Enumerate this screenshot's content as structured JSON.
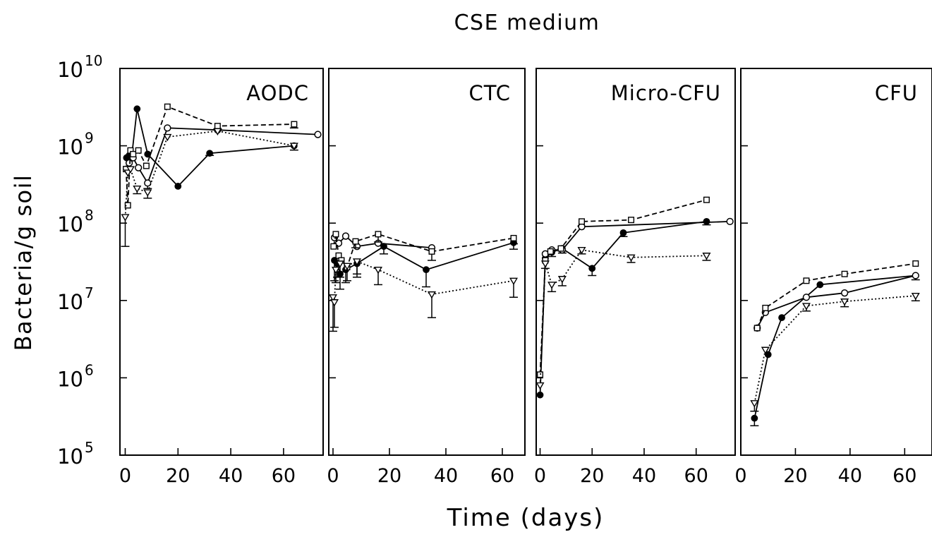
{
  "chart_data": {
    "type": "line",
    "title": "CSE medium",
    "xlabel": "Time (days)",
    "ylabel": "Bacteria/g soil",
    "yscale": "log",
    "ylim": [
      100000,
      10000000000
    ],
    "y_ticks": [
      {
        "base": "10",
        "exp": "5"
      },
      {
        "base": "10",
        "exp": "6"
      },
      {
        "base": "10",
        "exp": "7"
      },
      {
        "base": "10",
        "exp": "8"
      },
      {
        "base": "10",
        "exp": "9"
      },
      {
        "base": "10",
        "exp": "10"
      }
    ],
    "grid": false,
    "legend": "none",
    "panels": [
      {
        "title": "AODC",
        "xlim": [
          -2,
          75
        ],
        "x_ticks": [
          "0",
          "20",
          "40",
          "60"
        ],
        "x_tick_values": [
          0,
          20,
          40,
          60
        ],
        "series": [
          {
            "marker": "filled-circle",
            "dash": "solid",
            "x": [
              0.5,
              1.5,
              2.5,
              4.5,
              8.5,
              20,
              32,
              64
            ],
            "y": [
              700000000,
              750000000,
              750000000,
              3000000000,
              780000000,
              300000000,
              800000000,
              1000000000
            ],
            "err": [
              0,
              0,
              0,
              0,
              0,
              0,
              50000000,
              120000000
            ]
          },
          {
            "marker": "open-circle",
            "dash": "solid",
            "x": [
              0.5,
              1.5,
              3,
              5,
              8.5,
              16,
              35,
              73
            ],
            "y": [
              500000000,
              600000000,
              700000000,
              520000000,
              330000000,
              1700000000,
              1600000000,
              1400000000
            ],
            "err": [
              0,
              0,
              0,
              0,
              50000000,
              0,
              0,
              0
            ]
          },
          {
            "marker": "open-square",
            "dash": "dashed",
            "x": [
              0.3,
              1,
              2,
              3,
              5,
              8,
              16,
              35,
              64
            ],
            "y": [
              500000000,
              170000000,
              870000000,
              780000000,
              870000000,
              550000000,
              3200000000,
              1800000000,
              1900000000
            ],
            "err": [
              0,
              0,
              0,
              0,
              0,
              0,
              0,
              160000000,
              200000000
            ]
          },
          {
            "marker": "open-triangle-down",
            "dash": "dotted",
            "x": [
              0,
              1,
              2,
              4.5,
              8.5,
              16,
              35,
              64
            ],
            "y": [
              120000000,
              450000000,
              500000000,
              280000000,
              250000000,
              1300000000,
              1550000000,
              1000000000
            ],
            "err": [
              70000000,
              0,
              0,
              40000000,
              40000000,
              0,
              0,
              0
            ]
          }
        ]
      },
      {
        "title": "CTC",
        "xlim": [
          -1.5,
          68
        ],
        "x_ticks": [
          "0",
          "20",
          "40",
          "60"
        ],
        "x_tick_values": [
          0,
          20,
          40,
          60
        ],
        "series": [
          {
            "marker": "filled-circle",
            "dash": "solid",
            "x": [
              0.5,
              1.5,
              2.5,
              4.5,
              8.5,
              18,
              33,
              64
            ],
            "y": [
              33000000,
              30000000,
              22000000,
              25000000,
              30000000,
              50000000,
              25000000,
              56000000
            ],
            "err": [
              15000000,
              10000000,
              8000000,
              8000000,
              10000000,
              10000000,
              10000000,
              10000000
            ]
          },
          {
            "marker": "open-circle",
            "dash": "solid",
            "x": [
              0.5,
              2,
              4.5,
              8.5,
              16,
              35
            ],
            "y": [
              65000000,
              55000000,
              68000000,
              50000000,
              55000000,
              48000000
            ],
            "err": [
              0,
              0,
              0,
              0,
              0,
              0
            ]
          },
          {
            "marker": "open-square",
            "dash": "dashed",
            "x": [
              0.2,
              1,
              2,
              3,
              5,
              8,
              16,
              35,
              64
            ],
            "y": [
              50000000,
              72000000,
              38000000,
              33000000,
              27000000,
              58000000,
              72000000,
              43000000,
              64000000
            ],
            "err": [
              0,
              0,
              0,
              0,
              0,
              10000000,
              15000000,
              10000000,
              10000000
            ]
          },
          {
            "marker": "open-triangle-down",
            "dash": "dotted",
            "x": [
              0,
              0.5,
              1,
              2.5,
              5,
              8.5,
              16,
              35,
              64
            ],
            "y": [
              11000000,
              9500000,
              25000000,
              30000000,
              28000000,
              32000000,
              25000000,
              12000000,
              18000000
            ],
            "err": [
              7000000,
              5000000,
              8000000,
              10000000,
              10000000,
              10000000,
              9000000,
              6000000,
              7000000
            ]
          }
        ]
      },
      {
        "title": "Micro-CFU",
        "xlim": [
          -1.5,
          75
        ],
        "x_ticks": [
          "0",
          "20",
          "40",
          "60"
        ],
        "x_tick_values": [
          0,
          20,
          40,
          60
        ],
        "series": [
          {
            "marker": "filled-circle",
            "dash": "solid",
            "x": [
              0,
              2,
              4.5,
              8.5,
              20,
              32,
              64
            ],
            "y": [
              600000,
              35000000,
              42000000,
              47000000,
              26000000,
              75000000,
              105000000
            ],
            "err": [
              0,
              0,
              5000000,
              6000000,
              5000000,
              8000000,
              10000000
            ]
          },
          {
            "marker": "open-circle",
            "dash": "solid",
            "x": [
              2,
              4.5,
              8.5,
              16,
              73
            ],
            "y": [
              40000000,
              45000000,
              45000000,
              90000000,
              105000000
            ],
            "err": [
              0,
              0,
              0,
              0,
              0
            ]
          },
          {
            "marker": "open-square",
            "dash": "dashed",
            "x": [
              0,
              2,
              4,
              8,
              16,
              35,
              64
            ],
            "y": [
              1100000,
              33000000,
              43000000,
              47000000,
              105000000,
              110000000,
              200000000
            ],
            "err": [
              0,
              0,
              0,
              0,
              0,
              0,
              0
            ]
          },
          {
            "marker": "open-triangle-down",
            "dash": "dotted",
            "x": [
              0,
              2,
              4.5,
              8.5,
              16,
              35,
              64
            ],
            "y": [
              800000,
              30000000,
              16000000,
              19000000,
              45000000,
              36000000,
              38000000
            ],
            "err": [
              0,
              4000000,
              3000000,
              3500000,
              5000000,
              5000000,
              5000000
            ]
          }
        ]
      },
      {
        "title": "CFU",
        "xlim": [
          0,
          70
        ],
        "x_ticks": [
          "0",
          "20",
          "40",
          "60"
        ],
        "x_tick_values": [
          0,
          20,
          40,
          60
        ],
        "series": [
          {
            "marker": "filled-circle",
            "dash": "solid",
            "x": [
              5,
              10,
              15,
              29,
              64
            ],
            "y": [
              300000,
              2000000,
              6000000,
              16000000,
              21000000
            ],
            "err": [
              60000,
              0,
              0,
              0,
              2500000
            ]
          },
          {
            "marker": "open-circle",
            "dash": "solid",
            "x": [
              6,
              9,
              24,
              38,
              64
            ],
            "y": [
              4400000,
              7000000,
              11000000,
              12500000,
              21000000
            ],
            "err": [
              0,
              0,
              0,
              0,
              0
            ]
          },
          {
            "marker": "open-square",
            "dash": "dashed",
            "x": [
              6,
              9,
              24,
              38,
              64
            ],
            "y": [
              4400000,
              8000000,
              18000000,
              22000000,
              30000000
            ],
            "err": [
              0,
              0,
              0,
              0,
              0
            ]
          },
          {
            "marker": "open-triangle-down",
            "dash": "dotted",
            "x": [
              5,
              9,
              24,
              38,
              64
            ],
            "y": [
              470000,
              2300000,
              8500000,
              9700000,
              11500000
            ],
            "err": [
              100000,
              0,
              1200000,
              1400000,
              1600000
            ]
          }
        ]
      }
    ]
  }
}
